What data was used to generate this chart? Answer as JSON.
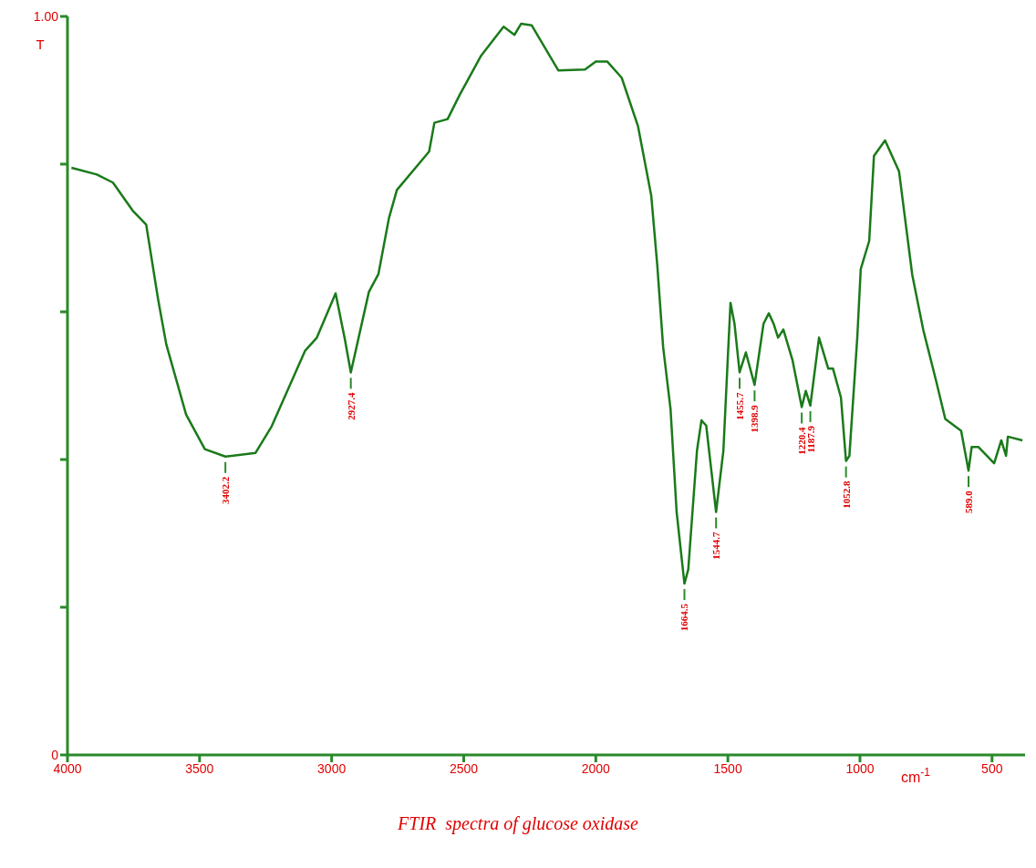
{
  "chart_data": {
    "type": "line",
    "title": "FTIR  spectra of glucose oxidase",
    "xlabel": "cm$^{-1}$",
    "ylabel": "T",
    "x": [
      3985,
      3889,
      3828,
      3753,
      3702,
      3657,
      3626,
      3551,
      3480,
      3402.2,
      3288,
      3227,
      3101,
      3056,
      2985,
      2950,
      2927.4,
      2859,
      2823,
      2783,
      2753,
      2631,
      2611,
      2561,
      2515,
      2434,
      2349,
      2308,
      2283,
      2243,
      2142,
      2041,
      2000,
      1957,
      1902,
      1840,
      1790,
      1767,
      1745,
      1717,
      1694,
      1664.5,
      1650,
      1617,
      1600,
      1582,
      1544.7,
      1517,
      1500,
      1490,
      1475,
      1455.7,
      1432,
      1398.9,
      1365,
      1345,
      1327,
      1310,
      1290,
      1255,
      1220.4,
      1205,
      1187.9,
      1155,
      1120,
      1102,
      1072,
      1052.8,
      1040,
      1010,
      997,
      965,
      947,
      905,
      852,
      827,
      802,
      760,
      710,
      677,
      617,
      589,
      577,
      552,
      492,
      465,
      447,
      440,
      385
    ],
    "series": [
      {
        "color": "#1a7a1a",
        "values": [
          0.795,
          0.786,
          0.775,
          0.737,
          0.718,
          0.617,
          0.556,
          0.461,
          0.414,
          0.404,
          0.409,
          0.445,
          0.547,
          0.565,
          0.625,
          0.563,
          0.518,
          0.627,
          0.651,
          0.727,
          0.765,
          0.817,
          0.856,
          0.861,
          0.894,
          0.947,
          0.986,
          0.975,
          0.99,
          0.988,
          0.927,
          0.928,
          0.939,
          0.939,
          0.917,
          0.851,
          0.757,
          0.662,
          0.552,
          0.468,
          0.329,
          0.232,
          0.251,
          0.412,
          0.453,
          0.446,
          0.329,
          0.412,
          0.54,
          0.612,
          0.584,
          0.518,
          0.545,
          0.501,
          0.584,
          0.598,
          0.584,
          0.565,
          0.576,
          0.534,
          0.471,
          0.493,
          0.473,
          0.565,
          0.523,
          0.523,
          0.484,
          0.398,
          0.405,
          0.566,
          0.658,
          0.696,
          0.811,
          0.832,
          0.79,
          0.72,
          0.65,
          0.575,
          0.504,
          0.455,
          0.439,
          0.385,
          0.417,
          0.417,
          0.395,
          0.426,
          0.405,
          0.431,
          0.426
        ]
      }
    ],
    "xlim": [
      4000,
      375
    ],
    "xticks": [
      4000,
      3500,
      3000,
      2500,
      2000,
      1500,
      1000,
      500
    ],
    "ylim": [
      0,
      1
    ],
    "yticks": [
      0,
      {
        "value": 0.2,
        "label": null
      },
      {
        "value": 0.4,
        "label": null
      },
      {
        "value": 0.6,
        "label": null
      },
      {
        "value": 0.8,
        "label": null
      },
      {
        "value": 1,
        "label": "1.00"
      }
    ],
    "grid": false,
    "legend": false,
    "marker": "none",
    "line_style": "solid",
    "annotations": [
      {
        "text": "3402.2",
        "x": 3402.2,
        "y": 0.404
      },
      {
        "text": "2927.4",
        "x": 2927.4,
        "y": 0.518
      },
      {
        "text": "1664.5",
        "x": 1664.5,
        "y": 0.232
      },
      {
        "text": "1544.7",
        "x": 1544.7,
        "y": 0.329
      },
      {
        "text": "1455.7",
        "x": 1455.7,
        "y": 0.518
      },
      {
        "text": "1398.9",
        "x": 1398.9,
        "y": 0.501
      },
      {
        "text": "1220.4",
        "x": 1220.4,
        "y": 0.471
      },
      {
        "text": "1187.9",
        "x": 1187.9,
        "y": 0.473
      },
      {
        "text": "1052.8",
        "x": 1052.8,
        "y": 0.398
      },
      {
        "text": "589.0",
        "x": 589,
        "y": 0.385
      }
    ]
  }
}
